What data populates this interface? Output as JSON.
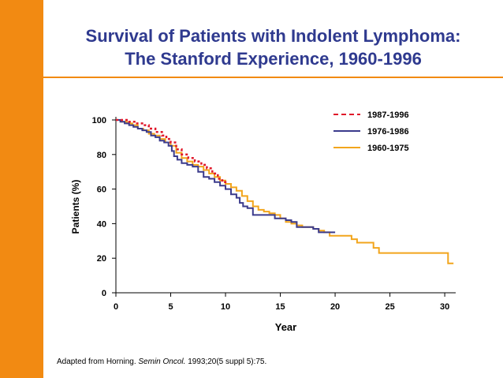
{
  "title": {
    "line1": "Survival of Patients with Indolent Lymphoma:",
    "line2": "The Stanford Experience, 1960-1996"
  },
  "citation": {
    "prefix": "Adapted from Horning. ",
    "journal": "Semin Oncol.",
    "suffix": " 1993;20(5 suppl 5):75."
  },
  "colors": {
    "accent": "#f28a12",
    "title": "#2f3a8f",
    "series_1987": "#e0182a",
    "series_1976": "#3b3b8c",
    "series_1960": "#f2a51c"
  },
  "chart_data": {
    "type": "line",
    "title": "",
    "xlabel": "Year",
    "ylabel": "Patients (%)",
    "xlim": [
      0,
      31
    ],
    "ylim": [
      0,
      100
    ],
    "xticks": [
      0,
      5,
      10,
      15,
      20,
      25,
      30
    ],
    "yticks": [
      0,
      20,
      40,
      60,
      80,
      100
    ],
    "grid": false,
    "legend_position": "top-right",
    "series": [
      {
        "name": "1987-1996",
        "style": "dashed",
        "points": [
          [
            0,
            100
          ],
          [
            0.6,
            100
          ],
          [
            1.2,
            99
          ],
          [
            1.8,
            98
          ],
          [
            2.4,
            97
          ],
          [
            3,
            95
          ],
          [
            3.6,
            93
          ],
          [
            4.2,
            91
          ],
          [
            4.6,
            89
          ],
          [
            5,
            87
          ],
          [
            5.5,
            83
          ],
          [
            6,
            80
          ],
          [
            6.6,
            78
          ],
          [
            7.2,
            76
          ],
          [
            7.8,
            74
          ],
          [
            8.3,
            72
          ],
          [
            8.8,
            69
          ],
          [
            9.3,
            66
          ],
          [
            9.7,
            64
          ],
          [
            10,
            62
          ]
        ]
      },
      {
        "name": "1976-1986",
        "style": "solid",
        "points": [
          [
            0,
            100
          ],
          [
            0.4,
            99
          ],
          [
            0.8,
            98
          ],
          [
            1.2,
            97
          ],
          [
            1.6,
            96
          ],
          [
            2,
            95
          ],
          [
            2.4,
            94
          ],
          [
            2.8,
            93
          ],
          [
            3.2,
            91
          ],
          [
            3.6,
            90
          ],
          [
            4,
            88
          ],
          [
            4.4,
            87
          ],
          [
            4.8,
            85
          ],
          [
            5.1,
            82
          ],
          [
            5.3,
            79
          ],
          [
            5.6,
            77
          ],
          [
            6,
            75
          ],
          [
            6.5,
            74
          ],
          [
            7,
            73
          ],
          [
            7.5,
            70
          ],
          [
            8,
            67
          ],
          [
            8.5,
            66
          ],
          [
            9,
            64
          ],
          [
            9.5,
            62
          ],
          [
            10,
            60
          ],
          [
            10.5,
            57
          ],
          [
            11,
            55
          ],
          [
            11.3,
            52
          ],
          [
            11.6,
            50
          ],
          [
            12,
            49
          ],
          [
            12.5,
            45
          ],
          [
            14,
            45
          ],
          [
            14.5,
            43
          ],
          [
            15.5,
            42
          ],
          [
            16,
            41
          ],
          [
            16.5,
            38
          ],
          [
            17.5,
            38
          ],
          [
            18,
            37
          ],
          [
            18.5,
            35
          ],
          [
            20,
            35
          ]
        ]
      },
      {
        "name": "1960-1975",
        "style": "solid",
        "points": [
          [
            0,
            100
          ],
          [
            0.5,
            99
          ],
          [
            1,
            98
          ],
          [
            1.5,
            97
          ],
          [
            2,
            95
          ],
          [
            2.5,
            94
          ],
          [
            3,
            92
          ],
          [
            3.5,
            91
          ],
          [
            4,
            89
          ],
          [
            4.5,
            87
          ],
          [
            5,
            85
          ],
          [
            5.5,
            81
          ],
          [
            6,
            78
          ],
          [
            6.5,
            76
          ],
          [
            7,
            74
          ],
          [
            7.5,
            73
          ],
          [
            8,
            71
          ],
          [
            8.5,
            69
          ],
          [
            9,
            67
          ],
          [
            9.5,
            65
          ],
          [
            10,
            63
          ],
          [
            10.5,
            61
          ],
          [
            11,
            59
          ],
          [
            11.5,
            56
          ],
          [
            12,
            53
          ],
          [
            12.5,
            50
          ],
          [
            13,
            48
          ],
          [
            13.5,
            47
          ],
          [
            14,
            46
          ],
          [
            14.5,
            45
          ],
          [
            15,
            43
          ],
          [
            15.5,
            41
          ],
          [
            16,
            40
          ],
          [
            16.5,
            39
          ],
          [
            17,
            38
          ],
          [
            18,
            37
          ],
          [
            18.5,
            36
          ],
          [
            19,
            35
          ],
          [
            19.5,
            33
          ],
          [
            21,
            33
          ],
          [
            21.5,
            31
          ],
          [
            22,
            29
          ],
          [
            23.5,
            26
          ],
          [
            24,
            23
          ],
          [
            30.2,
            23
          ],
          [
            30.3,
            17
          ],
          [
            30.8,
            17
          ]
        ]
      }
    ]
  }
}
